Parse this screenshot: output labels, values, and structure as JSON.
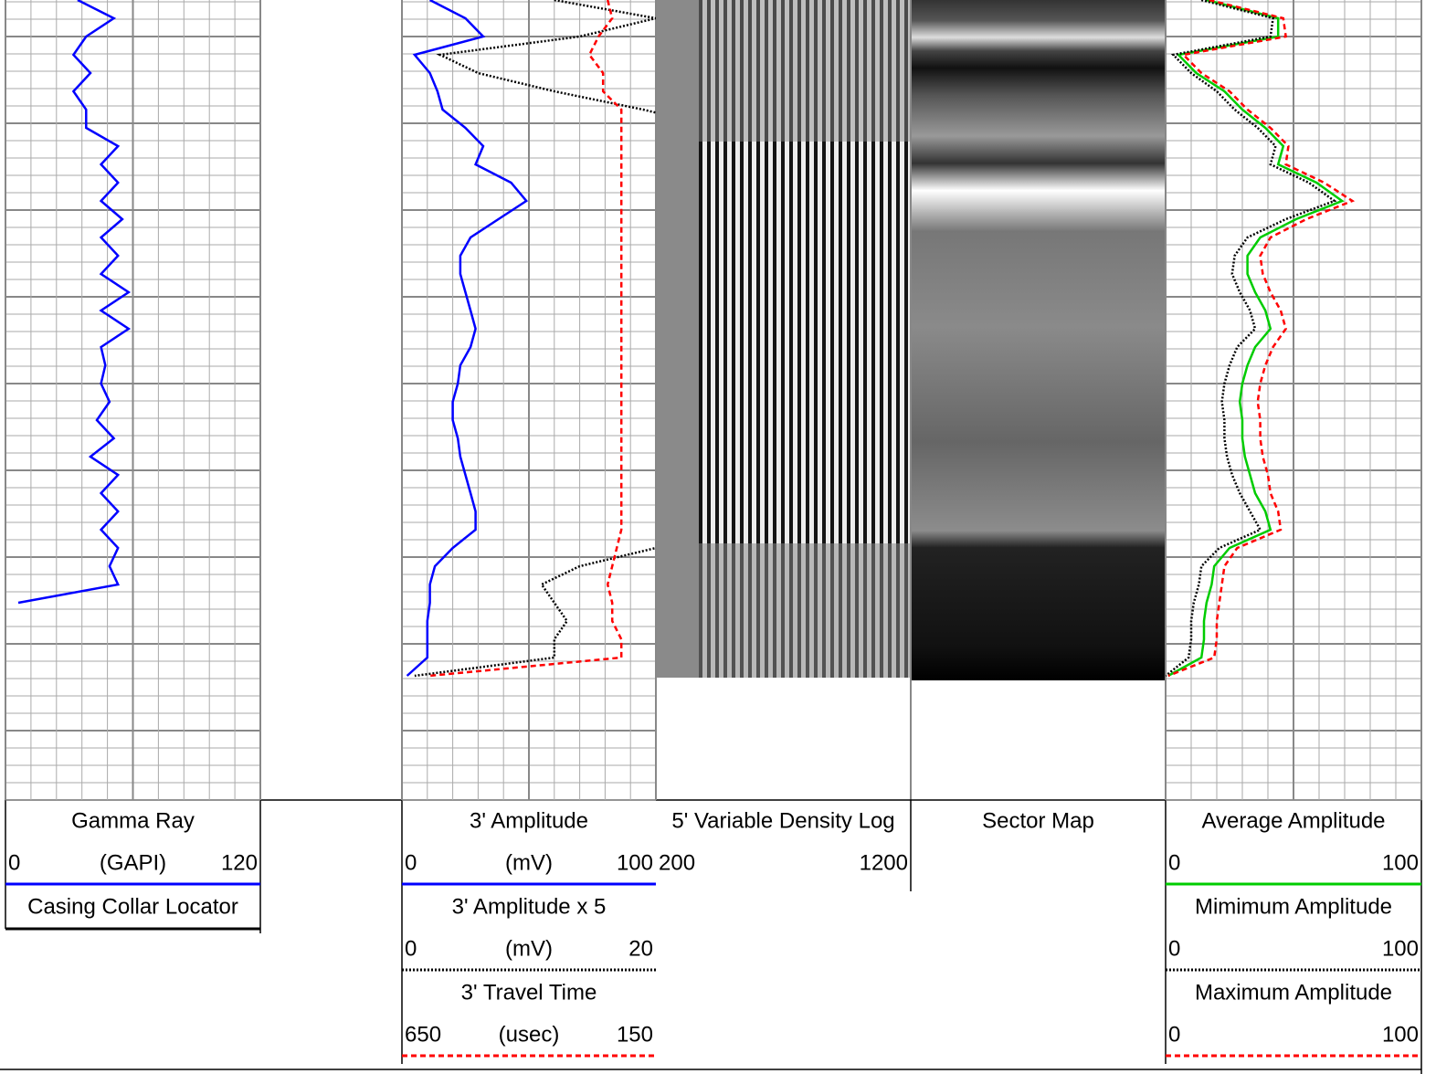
{
  "chart_data": [
    {
      "type": "log-track",
      "grid": true,
      "series": [
        {
          "name": "Gamma Ray",
          "unit": "(GAPI)",
          "xlim": [
            0,
            120
          ],
          "color": "#0000ff",
          "line_style": "solid",
          "values": [
            34,
            51,
            38,
            32,
            40,
            32,
            38,
            38,
            53,
            45,
            53,
            45,
            55,
            45,
            53,
            45,
            58,
            45,
            58,
            45,
            47,
            45,
            49,
            43,
            51,
            40,
            53,
            45,
            53,
            45,
            53,
            49,
            53,
            6
          ]
        },
        {
          "name": "Casing Collar Locator",
          "color": "#000000",
          "line_style": "solid"
        }
      ]
    },
    {
      "type": "log-track",
      "grid": true,
      "series": [
        {
          "name": "3' Amplitude",
          "unit": "(mV)",
          "xlim": [
            0,
            100
          ],
          "color": "#0000ff",
          "line_style": "solid",
          "values": [
            11,
            25,
            32,
            5,
            11,
            14,
            16,
            25,
            32,
            29,
            43,
            49,
            38,
            27,
            23,
            23,
            25,
            27,
            29,
            27,
            23,
            22,
            20,
            20,
            22,
            23,
            25,
            27,
            29,
            29,
            20,
            13,
            11,
            11,
            10,
            10,
            10,
            2
          ]
        },
        {
          "name": "3' Amplitude x 5",
          "unit": "(mV)",
          "xlim": [
            0,
            20
          ],
          "color": "#000000",
          "line_style": "dotted",
          "values": [
            12,
            20,
            14,
            3,
            6,
            12,
            19,
            25,
            25,
            25,
            25,
            25,
            25,
            25,
            25,
            25,
            25,
            25,
            25,
            25,
            25,
            25,
            25,
            25,
            25,
            25,
            25,
            25,
            25,
            25,
            20,
            14,
            11,
            12,
            13,
            12,
            12,
            1
          ]
        },
        {
          "name": "3' Travel Time",
          "unit": "(usec)",
          "xlim": [
            650,
            150
          ],
          "color": "#ff0000",
          "line_style": "dashed",
          "values": [
            245,
            236,
            263,
            281,
            254,
            254,
            218,
            218,
            218,
            218,
            218,
            218,
            218,
            218,
            218,
            218,
            218,
            218,
            218,
            218,
            218,
            218,
            218,
            218,
            218,
            218,
            218,
            218,
            218,
            218,
            227,
            236,
            245,
            236,
            236,
            218,
            218,
            596
          ]
        }
      ]
    },
    {
      "type": "image-track",
      "title": "5' Variable Density Log",
      "xlim": [
        200,
        1200
      ]
    },
    {
      "type": "image-track",
      "title": "Sector Map"
    },
    {
      "type": "log-track",
      "grid": true,
      "series": [
        {
          "name": "Average Amplitude",
          "xlim": [
            0,
            100
          ],
          "color": "#00cc00",
          "line_style": "solid",
          "values": [
            16,
            44,
            44,
            5,
            12,
            23,
            30,
            39,
            46,
            44,
            59,
            69,
            51,
            37,
            32,
            32,
            35,
            39,
            41,
            35,
            32,
            30,
            29,
            30,
            30,
            31,
            33,
            35,
            39,
            41,
            25,
            19,
            18,
            16,
            15,
            15,
            14,
            1
          ]
        },
        {
          "name": "Mimimum Amplitude",
          "xlim": [
            0,
            100
          ],
          "color": "#000000",
          "line_style": "dotted",
          "values": [
            14,
            42,
            41,
            3,
            10,
            20,
            27,
            36,
            43,
            41,
            56,
            66,
            47,
            32,
            27,
            26,
            29,
            33,
            35,
            28,
            25,
            23,
            22,
            23,
            23,
            24,
            26,
            29,
            33,
            37,
            21,
            14,
            13,
            11,
            10,
            10,
            9,
            0
          ]
        },
        {
          "name": "Maximum Amplitude",
          "xlim": [
            0,
            100
          ],
          "color": "#ff0000",
          "line_style": "dashed",
          "values": [
            17,
            46,
            47,
            7,
            14,
            25,
            32,
            41,
            48,
            47,
            62,
            73,
            55,
            41,
            37,
            38,
            41,
            45,
            47,
            42,
            39,
            37,
            36,
            37,
            37,
            38,
            40,
            41,
            44,
            45,
            28,
            23,
            22,
            21,
            20,
            20,
            19,
            1
          ]
        }
      ]
    }
  ]
}
